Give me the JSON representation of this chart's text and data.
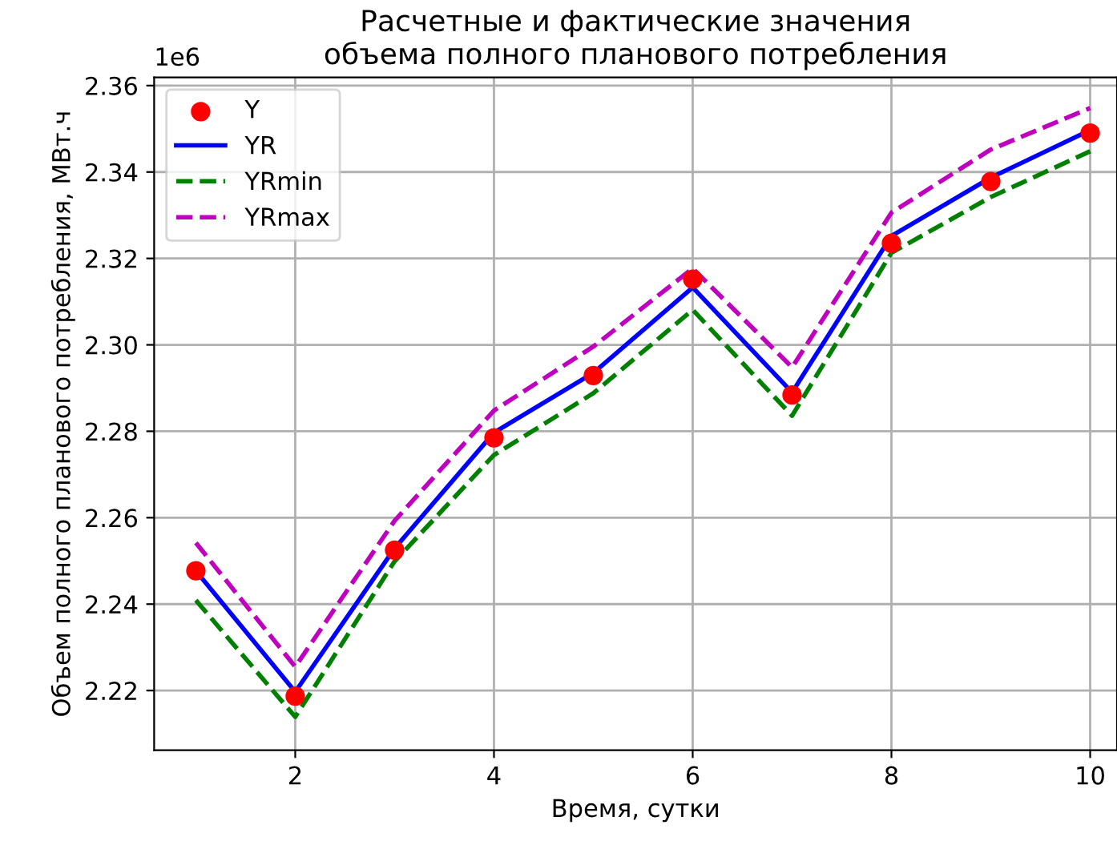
{
  "chart_data": {
    "type": "line",
    "title": "Расчетные и фактические значения\nобъема полного планового потребления",
    "xlabel": "Время, сутки",
    "ylabel": "Объем полного планового потребления, МВт.ч",
    "annotations": [
      "1e6"
    ],
    "x": [
      1,
      2,
      3,
      4,
      5,
      6,
      7,
      8,
      9,
      10
    ],
    "series": [
      {
        "name": "Y",
        "type": "scatter",
        "marker": "circle",
        "color": "#ff0000",
        "values": [
          2.2477,
          2.2187,
          2.2525,
          2.2785,
          2.2929,
          2.3152,
          2.2884,
          2.3235,
          2.3378,
          2.349
        ]
      },
      {
        "name": "YR",
        "line_style": "solid",
        "color": "#0000ff",
        "values": [
          2.2477,
          2.2197,
          2.2529,
          2.2797,
          2.2935,
          2.3133,
          2.289,
          2.3252,
          2.3387,
          2.3497
        ]
      },
      {
        "name": "YRmin",
        "line_style": "dashed",
        "color": "#008000",
        "values": [
          2.2409,
          2.2139,
          2.2499,
          2.2745,
          2.2888,
          2.3081,
          2.2836,
          2.3213,
          2.3342,
          2.3448
        ]
      },
      {
        "name": "YRmax",
        "line_style": "dashed",
        "color": "#bf00bf",
        "values": [
          2.2542,
          2.2255,
          2.2593,
          2.2848,
          2.2996,
          2.3177,
          2.2948,
          2.3306,
          2.3452,
          2.3548
        ]
      }
    ],
    "xlim": [
      0.58,
      10.27
    ],
    "xticks": [
      2,
      4,
      6,
      8,
      10
    ],
    "ylim": [
      2.2062,
      2.3619
    ],
    "yticks": [
      2.22,
      2.24,
      2.26,
      2.28,
      {
        "value": 2.3,
        "label": "2.30"
      },
      2.32,
      2.34,
      2.36
    ],
    "grid": true,
    "legend": "top left"
  }
}
